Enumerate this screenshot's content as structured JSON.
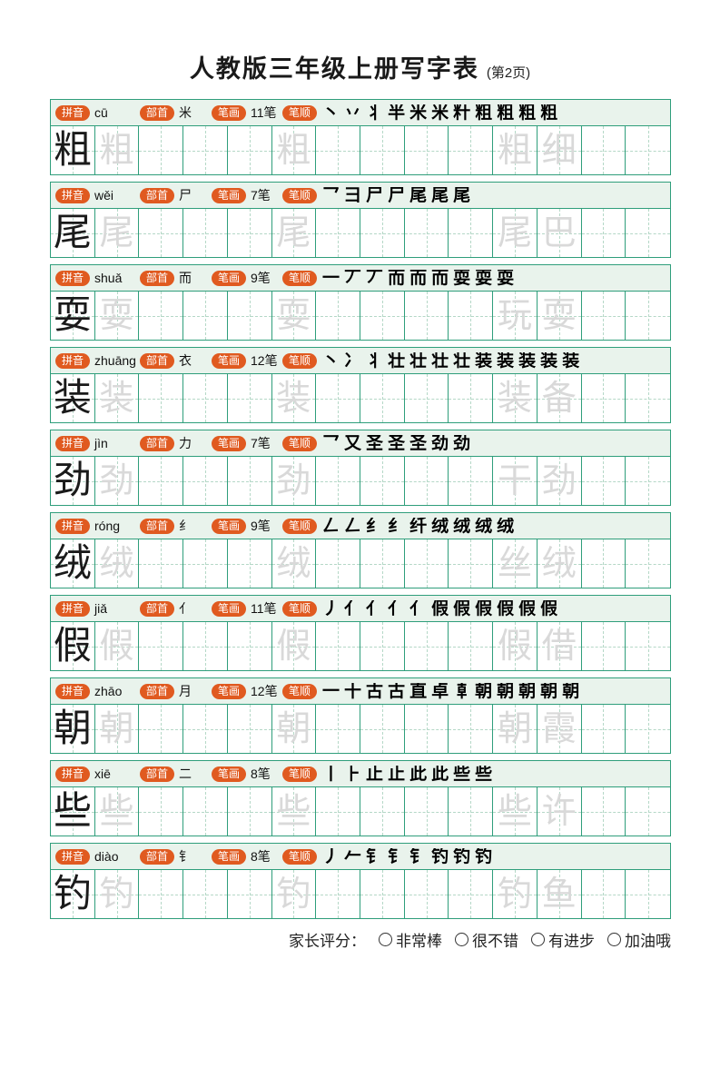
{
  "title": {
    "main": "人教版三年级上册写字表",
    "page": "(第2页)"
  },
  "labels": {
    "pinyin": "拼音",
    "radical": "部首",
    "stroke_count": "笔画",
    "stroke_order": "笔顺"
  },
  "grid": {
    "columns": 14,
    "main_char_cell": 1,
    "trace_char_cells": [
      2,
      6
    ],
    "word_cells": [
      11,
      12
    ]
  },
  "colors": {
    "border_green": "#2f9e7b",
    "header_bg": "#e9f3ec",
    "badge_orange": "#e05a20",
    "trace_gray": "#d9d9d9",
    "guide_dash": "#b5d8c7"
  },
  "rows": [
    {
      "char": "粗",
      "pinyin": "cū",
      "radical": "米",
      "stroke_count": "11笔",
      "word": "粗细",
      "stroke_steps": [
        "丶",
        "丷",
        "丬",
        "半",
        "米",
        "米",
        "籵",
        "粗",
        "粗",
        "粗",
        "粗"
      ]
    },
    {
      "char": "尾",
      "pinyin": "wěi",
      "radical": "尸",
      "stroke_count": "7笔",
      "word": "尾巴",
      "stroke_steps": [
        "乛",
        "⺕",
        "尸",
        "尸",
        "尾",
        "尾",
        "尾"
      ]
    },
    {
      "char": "耍",
      "pinyin": "shuǎ",
      "radical": "而",
      "stroke_count": "9笔",
      "word": "玩耍",
      "stroke_steps": [
        "一",
        "丆",
        "丆",
        "而",
        "而",
        "而",
        "耍",
        "耍",
        "耍"
      ]
    },
    {
      "char": "装",
      "pinyin": "zhuāng",
      "radical": "衣",
      "stroke_count": "12笔",
      "word": "装备",
      "stroke_steps": [
        "丶",
        "冫",
        "丬",
        "壮",
        "壮",
        "壮",
        "壮",
        "装",
        "装",
        "装",
        "装",
        "装"
      ]
    },
    {
      "char": "劲",
      "pinyin": "jìn",
      "radical": "力",
      "stroke_count": "7笔",
      "word": "干劲",
      "stroke_steps": [
        "乛",
        "又",
        "圣",
        "圣",
        "圣",
        "劲",
        "劲"
      ]
    },
    {
      "char": "绒",
      "pinyin": "róng",
      "radical": "纟",
      "stroke_count": "9笔",
      "word": "丝绒",
      "stroke_steps": [
        "𠃋",
        "𠃋",
        "纟",
        "纟",
        "纤",
        "绒",
        "绒",
        "绒",
        "绒"
      ]
    },
    {
      "char": "假",
      "pinyin": "jiǎ",
      "radical": "亻",
      "stroke_count": "11笔",
      "word": "假借",
      "stroke_steps": [
        "丿",
        "亻",
        "亻",
        "亻",
        "亻",
        "假",
        "假",
        "假",
        "假",
        "假",
        "假"
      ]
    },
    {
      "char": "朝",
      "pinyin": "zhāo",
      "radical": "月",
      "stroke_count": "12笔",
      "word": "朝霞",
      "stroke_steps": [
        "一",
        "十",
        "古",
        "古",
        "直",
        "卓",
        "𠦝",
        "朝",
        "朝",
        "朝",
        "朝",
        "朝"
      ]
    },
    {
      "char": "些",
      "pinyin": "xiē",
      "radical": "二",
      "stroke_count": "8笔",
      "word": "些许",
      "stroke_steps": [
        "丨",
        "⺊",
        "止",
        "止",
        "此",
        "此",
        "些",
        "些"
      ]
    },
    {
      "char": "钓",
      "pinyin": "diào",
      "radical": "钅",
      "stroke_count": "8笔",
      "word": "钓鱼",
      "stroke_steps": [
        "丿",
        "𠂉",
        "钅",
        "钅",
        "钅",
        "钓",
        "钓",
        "钓"
      ]
    }
  ],
  "footer": {
    "label": "家长评分：",
    "options": [
      "非常棒",
      "很不错",
      "有进步",
      "加油哦"
    ]
  }
}
